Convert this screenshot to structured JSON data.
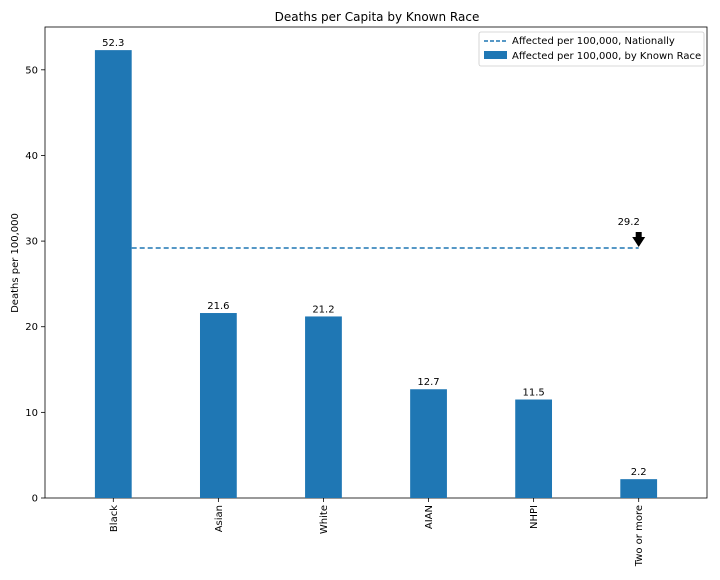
{
  "chart_data": {
    "type": "bar",
    "title": "Deaths per Capita by Known Race",
    "xlabel": "",
    "ylabel": "Deaths per 100,000",
    "categories": [
      "Black",
      "Asian",
      "White",
      "AIAN",
      "NHPI",
      "Two or more"
    ],
    "series": [
      {
        "name": "Affected per 100,000, by Known Race",
        "values": [
          52.3,
          21.6,
          21.2,
          12.7,
          11.5,
          2.2
        ],
        "color": "#1f77b4"
      }
    ],
    "value_labels": [
      "52.3",
      "21.6",
      "21.2",
      "12.7",
      "11.5",
      "2.2"
    ],
    "reference_line": {
      "name": "Affected per 100,000, Nationally",
      "value": 29.2,
      "label": "29.2",
      "style": "dashed",
      "color": "#1f77b4"
    },
    "ylim": [
      0,
      55
    ],
    "yticks": [
      0,
      10,
      20,
      30,
      40,
      50
    ],
    "grid": false,
    "legend_position": "top-right"
  }
}
